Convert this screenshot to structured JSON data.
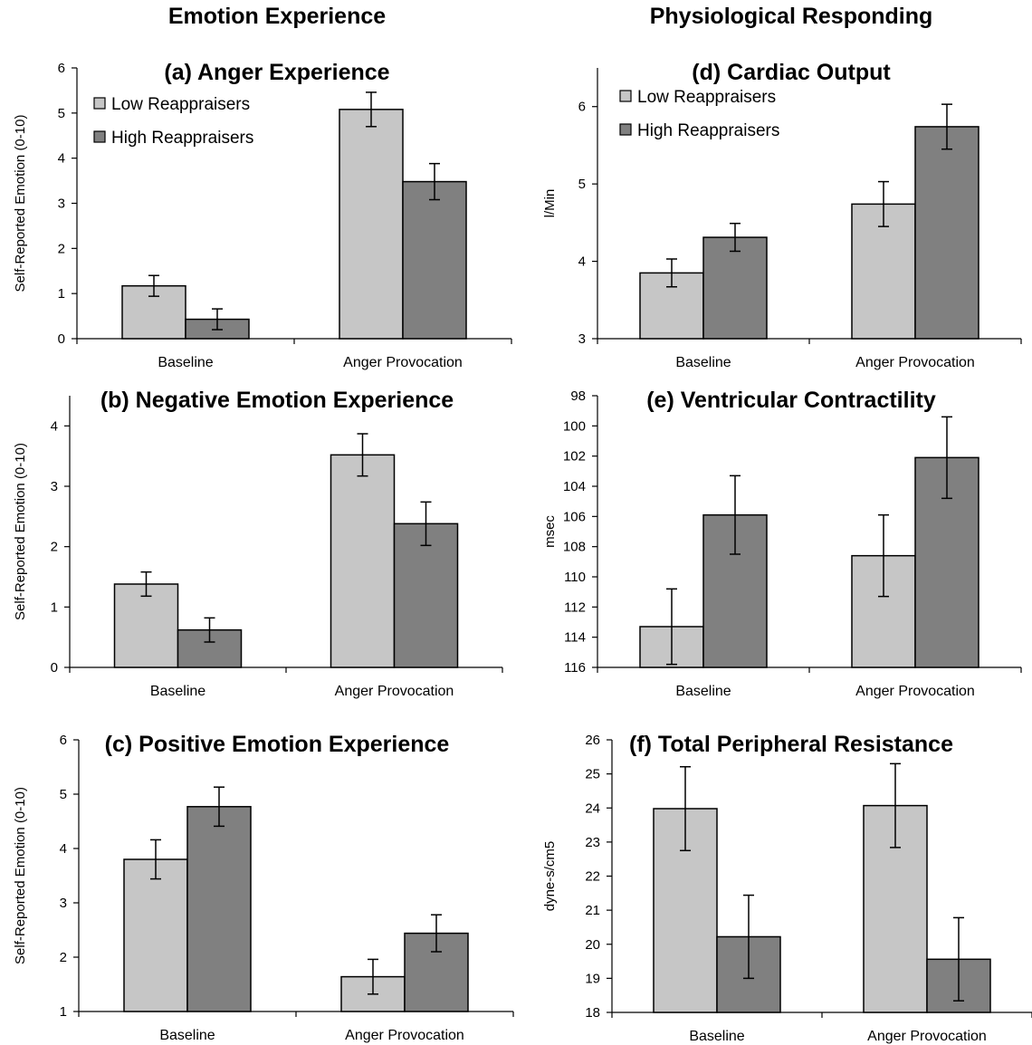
{
  "column_headings": {
    "left": "Emotion Experience",
    "right": "Physiological Responding"
  },
  "colors": {
    "low": "#c6c6c6",
    "high": "#808080",
    "stroke": "#000000"
  },
  "chart_data": [
    {
      "id": "a",
      "type": "bar",
      "title": "(a) Anger Experience",
      "ylabel": "Self-Reported Emotion (0-10)",
      "categories": [
        "Baseline",
        "Anger Provocation"
      ],
      "ylim": [
        0,
        6
      ],
      "yticks": [
        0,
        1,
        2,
        3,
        4,
        5,
        6
      ],
      "inverted": false,
      "legend": "top-left",
      "series": [
        {
          "name": "Low Reappraisers",
          "values": [
            1.17,
            5.08
          ],
          "errors": [
            0.23,
            0.38
          ]
        },
        {
          "name": "High Reappraisers",
          "values": [
            0.43,
            3.48
          ],
          "errors": [
            0.23,
            0.4
          ]
        }
      ]
    },
    {
      "id": "b",
      "type": "bar",
      "title": "(b) Negative Emotion Experience",
      "ylabel": "Self-Reported Emotion (0-10)",
      "categories": [
        "Baseline",
        "Anger Provocation"
      ],
      "ylim": [
        0,
        4.5
      ],
      "yticks": [
        0,
        1,
        2,
        3,
        4
      ],
      "inverted": false,
      "legend": "none",
      "series": [
        {
          "name": "Low Reappraisers",
          "values": [
            1.38,
            3.52
          ],
          "errors": [
            0.2,
            0.35
          ]
        },
        {
          "name": "High Reappraisers",
          "values": [
            0.62,
            2.38
          ],
          "errors": [
            0.2,
            0.36
          ]
        }
      ]
    },
    {
      "id": "c",
      "type": "bar",
      "title": "(c) Positive Emotion Experience",
      "ylabel": "Self-Reported Emotion (0-10)",
      "categories": [
        "Baseline",
        "Anger Provocation"
      ],
      "ylim": [
        1,
        6
      ],
      "yticks": [
        1,
        2,
        3,
        4,
        5,
        6
      ],
      "inverted": false,
      "legend": "none",
      "series": [
        {
          "name": "Low Reappraisers",
          "values": [
            3.8,
            1.64
          ],
          "errors": [
            0.36,
            0.32
          ]
        },
        {
          "name": "High Reappraisers",
          "values": [
            4.77,
            2.44
          ],
          "errors": [
            0.36,
            0.34
          ]
        }
      ]
    },
    {
      "id": "d",
      "type": "bar",
      "title": "(d) Cardiac Output",
      "ylabel": "l/Min",
      "categories": [
        "Baseline",
        "Anger Provocation"
      ],
      "ylim": [
        3,
        6.5
      ],
      "yticks": [
        3,
        4,
        5,
        6
      ],
      "inverted": false,
      "legend": "top-left",
      "series": [
        {
          "name": "Low Reappraisers",
          "values": [
            3.85,
            4.74
          ],
          "errors": [
            0.18,
            0.29
          ]
        },
        {
          "name": "High Reappraisers",
          "values": [
            4.31,
            5.74
          ],
          "errors": [
            0.18,
            0.29
          ]
        }
      ]
    },
    {
      "id": "e",
      "type": "bar",
      "title": "(e) Ventricular Contractility",
      "ylabel": "msec",
      "categories": [
        "Baseline",
        "Anger Provocation"
      ],
      "ylim": [
        98,
        116
      ],
      "yticks": [
        98,
        100,
        102,
        104,
        106,
        108,
        110,
        112,
        114,
        116
      ],
      "inverted": true,
      "legend": "none",
      "series": [
        {
          "name": "Low Reappraisers",
          "values": [
            113.3,
            108.6
          ],
          "errors": [
            2.5,
            2.7
          ]
        },
        {
          "name": "High Reappraisers",
          "values": [
            105.9,
            102.1
          ],
          "errors": [
            2.6,
            2.7
          ]
        }
      ]
    },
    {
      "id": "f",
      "type": "bar",
      "title": "(f) Total Peripheral Resistance",
      "ylabel": "dyne-s/cm5",
      "categories": [
        "Baseline",
        "Anger Provocation"
      ],
      "ylim": [
        18,
        26
      ],
      "yticks": [
        18,
        19,
        20,
        21,
        22,
        23,
        24,
        25,
        26
      ],
      "inverted": false,
      "legend": "none",
      "series": [
        {
          "name": "Low Reappraisers",
          "values": [
            23.98,
            24.07
          ],
          "errors": [
            1.23,
            1.23
          ]
        },
        {
          "name": "High Reappraisers",
          "values": [
            20.22,
            19.56
          ],
          "errors": [
            1.22,
            1.22
          ]
        }
      ]
    }
  ]
}
